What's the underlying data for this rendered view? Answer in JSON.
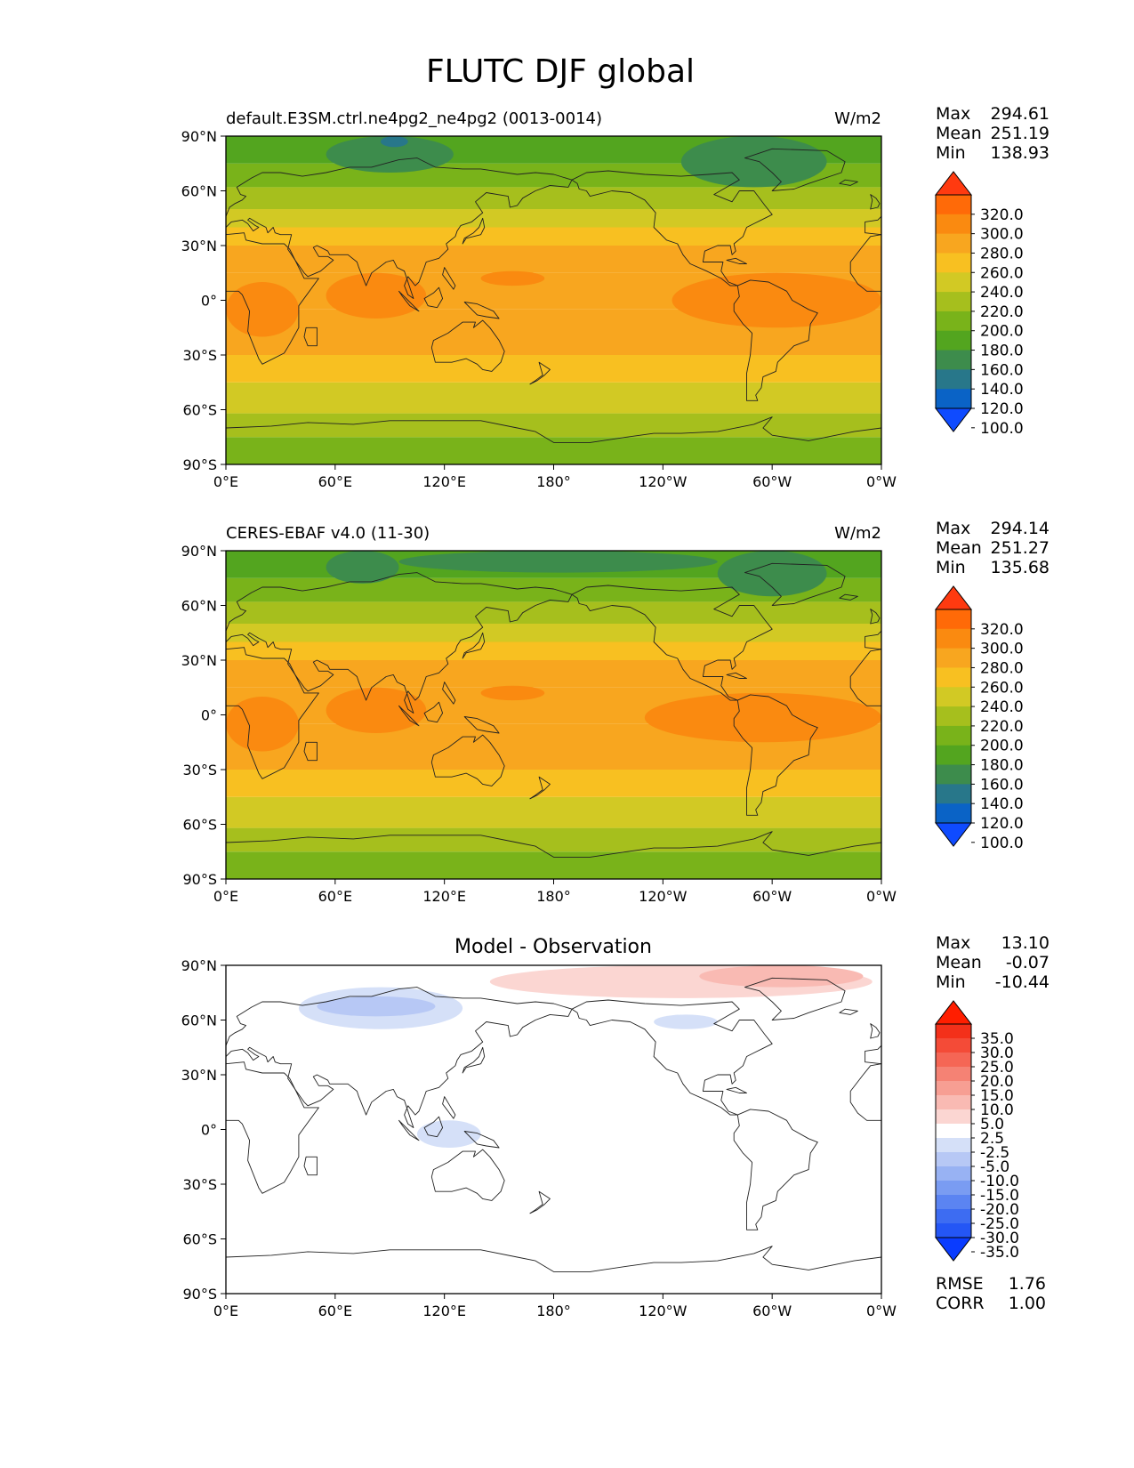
{
  "figure": {
    "title": "FLUTC DJF global"
  },
  "chart_data": [
    {
      "type": "heatmap",
      "panel": "test",
      "title_left": "default.E3SM.ctrl.ne4pg2_ne4pg2 (0013-0014)",
      "title_center": "",
      "units": "W/m2",
      "stats": [
        {
          "label": "Max",
          "value": "294.61"
        },
        {
          "label": "Mean",
          "value": "251.19"
        },
        {
          "label": "Min",
          "value": "138.93"
        }
      ],
      "x_ticks": [
        "0°E",
        "60°E",
        "120°E",
        "180°",
        "120°W",
        "60°W",
        "0°W"
      ],
      "y_ticks": [
        "90°N",
        "60°N",
        "30°N",
        "0°",
        "30°S",
        "60°S",
        "90°S"
      ],
      "xlim": [
        0,
        360
      ],
      "ylim": [
        -90,
        90
      ],
      "colorbar": {
        "levels": [
          100,
          120,
          140,
          160,
          180,
          200,
          220,
          240,
          260,
          280,
          300,
          320
        ],
        "tick_labels": [
          "320.0",
          "300.0",
          "280.0",
          "260.0",
          "240.0",
          "220.0",
          "200.0",
          "180.0",
          "160.0",
          "140.0",
          "120.0",
          "100.0"
        ],
        "colors": [
          "#0f4bff",
          "#0a63c6",
          "#28778a",
          "#3d8c4c",
          "#53a51f",
          "#79b31a",
          "#a6bf1d",
          "#d2c924",
          "#f8c021",
          "#f8a61f",
          "#fa8a10",
          "#ff6a08",
          "#ff3a10"
        ],
        "extend": "both"
      },
      "zonal_bands": [
        {
          "lat": [
            -90,
            -75
          ],
          "value": 185
        },
        {
          "lat": [
            -75,
            -62
          ],
          "value": 208
        },
        {
          "lat": [
            -62,
            -45
          ],
          "value": 228
        },
        {
          "lat": [
            -45,
            -30
          ],
          "value": 248
        },
        {
          "lat": [
            -30,
            -5
          ],
          "value": 268
        },
        {
          "lat": [
            -5,
            15
          ],
          "value": 275
        },
        {
          "lat": [
            15,
            30
          ],
          "value": 268
        },
        {
          "lat": [
            30,
            40
          ],
          "value": 248
        },
        {
          "lat": [
            40,
            50
          ],
          "value": 228
        },
        {
          "lat": [
            50,
            62
          ],
          "value": 205
        },
        {
          "lat": [
            62,
            75
          ],
          "value": 185
        },
        {
          "lat": [
            75,
            90
          ],
          "value": 172
        }
      ],
      "features": [
        {
          "label": "tropical-high",
          "lon": [
            0,
            40
          ],
          "lat": [
            -20,
            10
          ],
          "value": 285
        },
        {
          "label": "tropical-high",
          "lon": [
            55,
            110
          ],
          "lat": [
            -10,
            15
          ],
          "value": 285
        },
        {
          "label": "tropical-high",
          "lon": [
            140,
            175
          ],
          "lat": [
            8,
            16
          ],
          "value": 285
        },
        {
          "label": "tropical-high",
          "lon": [
            245,
            360
          ],
          "lat": [
            -15,
            15
          ],
          "value": 285
        },
        {
          "label": "arctic-low",
          "lon": [
            55,
            125
          ],
          "lat": [
            70,
            90
          ],
          "value": 152
        },
        {
          "label": "arctic-low",
          "lon": [
            250,
            330
          ],
          "lat": [
            62,
            90
          ],
          "value": 158
        },
        {
          "label": "arctic-low",
          "lon": [
            85,
            100
          ],
          "lat": [
            84,
            90
          ],
          "value": 135
        }
      ]
    },
    {
      "type": "heatmap",
      "panel": "reference",
      "title_left": "CERES-EBAF v4.0 (11-30)",
      "title_center": "",
      "units": "W/m2",
      "stats": [
        {
          "label": "Max",
          "value": "294.14"
        },
        {
          "label": "Mean",
          "value": "251.27"
        },
        {
          "label": "Min",
          "value": "135.68"
        }
      ],
      "x_ticks": [
        "0°E",
        "60°E",
        "120°E",
        "180°",
        "120°W",
        "60°W",
        "0°W"
      ],
      "y_ticks": [
        "90°N",
        "60°N",
        "30°N",
        "0°",
        "30°S",
        "60°S",
        "90°S"
      ],
      "xlim": [
        0,
        360
      ],
      "ylim": [
        -90,
        90
      ],
      "colorbar": {
        "levels": [
          100,
          120,
          140,
          160,
          180,
          200,
          220,
          240,
          260,
          280,
          300,
          320
        ],
        "tick_labels": [
          "320.0",
          "300.0",
          "280.0",
          "260.0",
          "240.0",
          "220.0",
          "200.0",
          "180.0",
          "160.0",
          "140.0",
          "120.0",
          "100.0"
        ],
        "colors": [
          "#0f4bff",
          "#0a63c6",
          "#28778a",
          "#3d8c4c",
          "#53a51f",
          "#79b31a",
          "#a6bf1d",
          "#d2c924",
          "#f8c021",
          "#f8a61f",
          "#fa8a10",
          "#ff6a08",
          "#ff3a10"
        ],
        "extend": "both"
      },
      "zonal_bands": [
        {
          "lat": [
            -90,
            -75
          ],
          "value": 185
        },
        {
          "lat": [
            -75,
            -62
          ],
          "value": 208
        },
        {
          "lat": [
            -62,
            -45
          ],
          "value": 228
        },
        {
          "lat": [
            -45,
            -30
          ],
          "value": 248
        },
        {
          "lat": [
            -30,
            -5
          ],
          "value": 268
        },
        {
          "lat": [
            -5,
            15
          ],
          "value": 275
        },
        {
          "lat": [
            15,
            30
          ],
          "value": 268
        },
        {
          "lat": [
            30,
            40
          ],
          "value": 248
        },
        {
          "lat": [
            40,
            50
          ],
          "value": 228
        },
        {
          "lat": [
            50,
            62
          ],
          "value": 205
        },
        {
          "lat": [
            62,
            75
          ],
          "value": 185
        },
        {
          "lat": [
            75,
            90
          ],
          "value": 168
        }
      ],
      "features": [
        {
          "label": "tropical-high",
          "lon": [
            0,
            40
          ],
          "lat": [
            -20,
            10
          ],
          "value": 285
        },
        {
          "label": "tropical-high",
          "lon": [
            55,
            110
          ],
          "lat": [
            -10,
            15
          ],
          "value": 285
        },
        {
          "label": "tropical-high",
          "lon": [
            140,
            175
          ],
          "lat": [
            8,
            16
          ],
          "value": 285
        },
        {
          "label": "tropical-high",
          "lon": [
            230,
            360
          ],
          "lat": [
            -15,
            12
          ],
          "value": 285
        },
        {
          "label": "arctic-low",
          "lon": [
            95,
            270
          ],
          "lat": [
            78,
            90
          ],
          "value": 145
        },
        {
          "label": "arctic-low",
          "lon": [
            55,
            95
          ],
          "lat": [
            72,
            90
          ],
          "value": 158
        },
        {
          "label": "arctic-low",
          "lon": [
            270,
            330
          ],
          "lat": [
            65,
            90
          ],
          "value": 158
        }
      ]
    },
    {
      "type": "heatmap",
      "panel": "difference",
      "title_left": "",
      "title_center": "Model - Observation",
      "units": "",
      "stats": [
        {
          "label": "Max",
          "value": "13.10"
        },
        {
          "label": "Mean",
          "value": "-0.07"
        },
        {
          "label": "Min",
          "value": "-10.44"
        }
      ],
      "x_ticks": [
        "0°E",
        "60°E",
        "120°E",
        "180°",
        "120°W",
        "60°W",
        "0°W"
      ],
      "y_ticks": [
        "90°N",
        "60°N",
        "30°N",
        "0°",
        "30°S",
        "60°S",
        "90°S"
      ],
      "xlim": [
        0,
        360
      ],
      "ylim": [
        -90,
        90
      ],
      "colorbar": {
        "levels": [
          -35,
          -30,
          -25,
          -20,
          -15,
          -10,
          -5,
          -2.5,
          2.5,
          5,
          10,
          15,
          20,
          25,
          30,
          35
        ],
        "tick_labels": [
          "35.0",
          "30.0",
          "25.0",
          "20.0",
          "15.0",
          "10.0",
          "5.0",
          "2.5",
          "-2.5",
          "-5.0",
          "-10.0",
          "-15.0",
          "-20.0",
          "-25.0",
          "-30.0",
          "-35.0"
        ],
        "colors": [
          "#0a3cff",
          "#2456f5",
          "#3d6cf2",
          "#5b84f2",
          "#7a9cf2",
          "#98b2f3",
          "#b7c8f5",
          "#d5e0f8",
          "#ffffff",
          "#fbd6d2",
          "#f9bab3",
          "#f79e93",
          "#f58274",
          "#f56655",
          "#f44b37",
          "#f3301a",
          "#ff1e00"
        ],
        "extend": "both"
      },
      "zonal_bands": [],
      "features": [
        {
          "label": "positive-anomaly",
          "lon": [
            145,
            355
          ],
          "lat": [
            72,
            90
          ],
          "value": 4
        },
        {
          "label": "positive-anomaly",
          "lon": [
            260,
            350
          ],
          "lat": [
            78,
            90
          ],
          "value": 8
        },
        {
          "label": "negative-anomaly",
          "lon": [
            40,
            130
          ],
          "lat": [
            55,
            78
          ],
          "value": -4
        },
        {
          "label": "negative-anomaly",
          "lon": [
            50,
            115
          ],
          "lat": [
            62,
            73
          ],
          "value": -7
        },
        {
          "label": "negative-anomaly",
          "lon": [
            235,
            270
          ],
          "lat": [
            55,
            63
          ],
          "value": -4
        },
        {
          "label": "negative-anomaly",
          "lon": [
            105,
            140
          ],
          "lat": [
            -10,
            5
          ],
          "value": -4
        }
      ],
      "metrics": [
        {
          "label": "RMSE",
          "value": "1.76"
        },
        {
          "label": "CORR",
          "value": "1.00"
        }
      ]
    }
  ]
}
